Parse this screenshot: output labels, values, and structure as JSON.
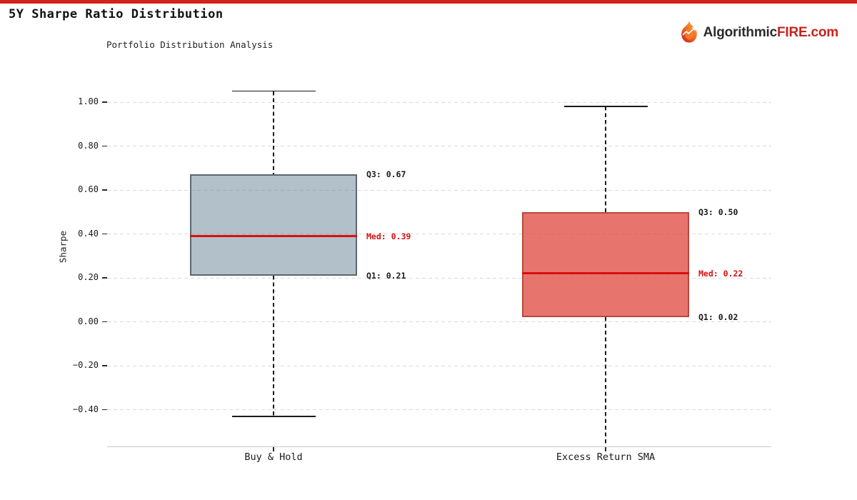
{
  "page": {
    "title": "5Y Sharpe Ratio Distribution",
    "subtitle": "Portfolio Distribution Analysis"
  },
  "logo": {
    "icon": "flame-icon",
    "prefix": "Algorithmic",
    "suffix": "FIRE.com",
    "prefix_color": "#2b2b2b",
    "suffix_color": "#c4241e"
  },
  "colors": {
    "accent_bar": "#d0241e",
    "median_line": "#d90f0f",
    "median_label": "#d90f0f",
    "quartile_label": "#1a1a1a",
    "grid": "#d8d8d8",
    "axis_line": "#c9c9c9",
    "whisker": "#1a1a1a"
  },
  "chart_data": {
    "type": "boxplot",
    "title": "5Y Sharpe Ratio Distribution",
    "subtitle": "Portfolio Distribution Analysis",
    "ylabel": "Sharpe",
    "xlabel": "",
    "grid": "horizontal dashed",
    "yticks": [
      1.0,
      0.8,
      0.6,
      0.4,
      0.2,
      0.0,
      -0.2,
      -0.4
    ],
    "ytick_labels": [
      "1.00",
      "0.80",
      "0.60",
      "0.40",
      "0.20",
      "0.00",
      "−0.20",
      "−0.40"
    ],
    "ylim_visible": [
      -0.57,
      1.09
    ],
    "categories": [
      "Buy & Hold",
      "Excess Return SMA"
    ],
    "series": [
      {
        "name": "Buy & Hold",
        "whisker_high": 1.05,
        "q3": 0.67,
        "median": 0.39,
        "q1": 0.21,
        "whisker_low": -0.43,
        "whisker_low_clipped": false,
        "labels": {
          "q3": "Q3: 0.67",
          "median": "Med: 0.39",
          "q1": "Q1: 0.21"
        },
        "box_fill": "#b2c0ca",
        "box_edge": "#5c666d"
      },
      {
        "name": "Excess Return SMA",
        "whisker_high": 0.98,
        "q3": 0.5,
        "median": 0.22,
        "q1": 0.02,
        "whisker_low": null,
        "whisker_low_clipped": true,
        "labels": {
          "q3": "Q3: 0.50",
          "median": "Med: 0.22",
          "q1": "Q1: 0.02"
        },
        "box_fill": "#e8756d",
        "box_edge": "#bb453c"
      }
    ]
  }
}
